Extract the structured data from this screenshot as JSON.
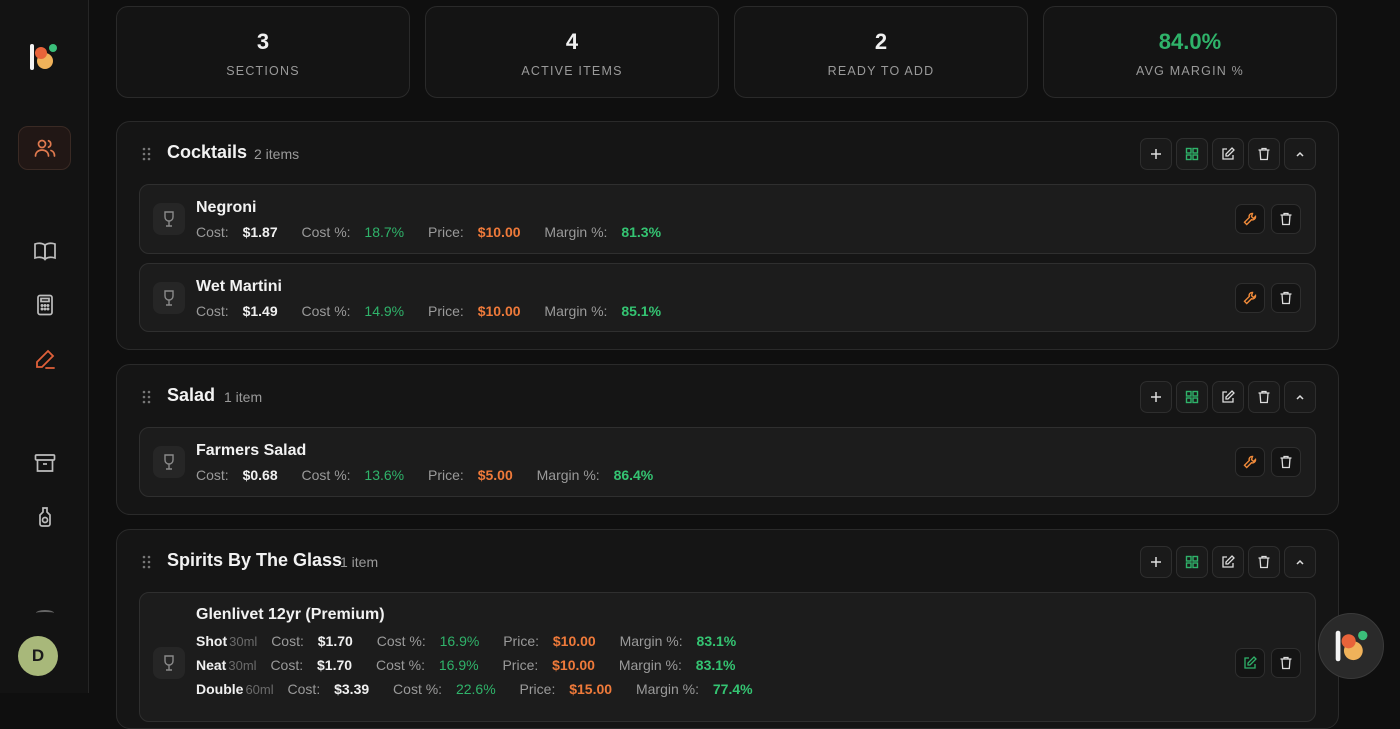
{
  "sidebar": {
    "avatar_initial": "D",
    "icons": [
      "users-icon",
      "book-icon",
      "calculator-icon",
      "pen-icon",
      "archive-icon",
      "bottle-icon"
    ]
  },
  "stats": [
    {
      "value": "3",
      "label": "SECTIONS"
    },
    {
      "value": "4",
      "label": "ACTIVE ITEMS"
    },
    {
      "value": "2",
      "label": "READY TO ADD"
    },
    {
      "value": "84.0%",
      "label": "AVG MARGIN %"
    }
  ],
  "sections": [
    {
      "title": "Cocktails",
      "count": "2 items",
      "items": [
        {
          "name": "Negroni",
          "cost_label": "Cost:",
          "cost": "$1.87",
          "costpct_label": "Cost %:",
          "costpct": "18.7%",
          "price_label": "Price:",
          "price": "$10.00",
          "margin_label": "Margin %:",
          "margin": "81.3%"
        },
        {
          "name": "Wet Martini",
          "cost_label": "Cost:",
          "cost": "$1.49",
          "costpct_label": "Cost %:",
          "costpct": "14.9%",
          "price_label": "Price:",
          "price": "$10.00",
          "margin_label": "Margin %:",
          "margin": "85.1%"
        }
      ]
    },
    {
      "title": "Salad",
      "count": "1 item",
      "items": [
        {
          "name": "Farmers Salad",
          "cost_label": "Cost:",
          "cost": "$0.68",
          "costpct_label": "Cost %:",
          "costpct": "13.6%",
          "price_label": "Price:",
          "price": "$5.00",
          "margin_label": "Margin %:",
          "margin": "86.4%"
        }
      ]
    },
    {
      "title": "Spirits By The Glass",
      "count": "1 item",
      "items": [
        {
          "name": "Glenlivet 12yr (Premium)",
          "pours": [
            {
              "pour": "Shot",
              "size": "30ml",
              "cost_label": "Cost:",
              "cost": "$1.70",
              "costpct_label": "Cost %:",
              "costpct": "16.9%",
              "price_label": "Price:",
              "price": "$10.00",
              "margin_label": "Margin %:",
              "margin": "83.1%"
            },
            {
              "pour": "Neat",
              "size": "30ml",
              "cost_label": "Cost:",
              "cost": "$1.70",
              "costpct_label": "Cost %:",
              "costpct": "16.9%",
              "price_label": "Price:",
              "price": "$10.00",
              "margin_label": "Margin %:",
              "margin": "83.1%"
            },
            {
              "pour": "Double",
              "size": "60ml",
              "cost_label": "Cost:",
              "cost": "$3.39",
              "costpct_label": "Cost %:",
              "costpct": "22.6%",
              "price_label": "Price:",
              "price": "$15.00",
              "margin_label": "Margin %:",
              "margin": "77.4%"
            }
          ]
        }
      ]
    }
  ],
  "colors": {
    "accent_orange": "#ef7a3a",
    "accent_green": "#2fb36a"
  }
}
